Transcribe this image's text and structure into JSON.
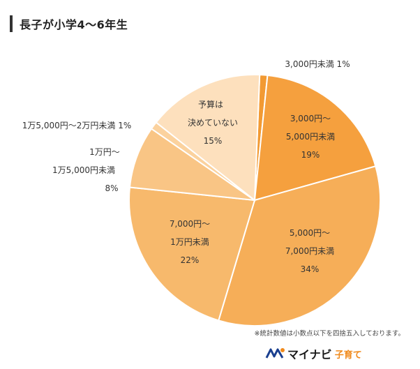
{
  "header": {
    "title": "長子が小学4〜6年生"
  },
  "chart_data": {
    "type": "pie",
    "title": "長子が小学4〜6年生",
    "slices": [
      {
        "label": "3,000円未満",
        "value": 1,
        "pct": "1%",
        "color": "#f29a33"
      },
      {
        "label": "3,000円〜5,000円未満",
        "value": 19,
        "pct": "19%",
        "color": "#f5a03e"
      },
      {
        "label": "5,000円〜7,000円未満",
        "value": 34,
        "pct": "34%",
        "color": "#f6ae58"
      },
      {
        "label": "7,000円〜1万円未満",
        "value": 22,
        "pct": "22%",
        "color": "#f7b96c"
      },
      {
        "label": "1万円〜1万5,000円未満",
        "value": 8,
        "pct": "8%",
        "color": "#f9c585"
      },
      {
        "label": "1万5,000円〜2万円未満",
        "value": 1,
        "pct": "1%",
        "color": "#fbd29e"
      },
      {
        "label": "予算は決めていない",
        "value": 15,
        "pct": "15%",
        "color": "#fde0bd"
      }
    ]
  },
  "footnote": "※統計数値は小数点以下を四捨五入しております。",
  "logo": {
    "text": "マイナビ",
    "sub": "子育て",
    "color": "#f08a1c"
  }
}
